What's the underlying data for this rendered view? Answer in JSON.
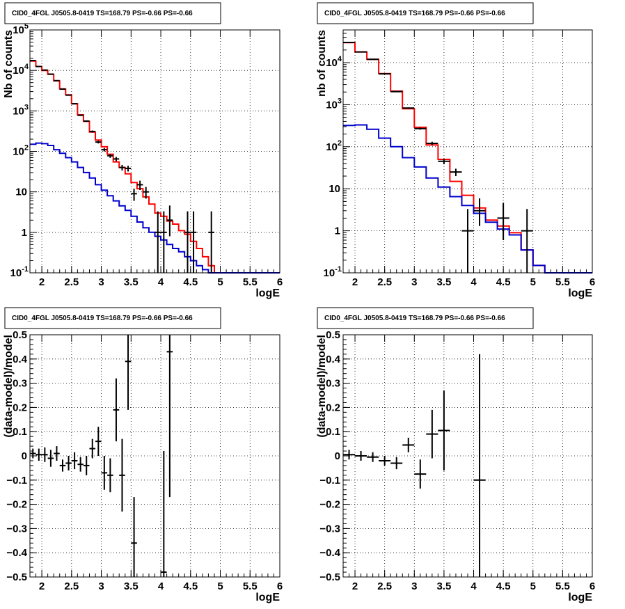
{
  "chart_data": [
    {
      "type": "histogram",
      "title": "CID0_4FGL J0505.8-0419 TS=168.79 PS=-0.66 PS=-0.66",
      "xlabel": "logE",
      "ylabel": "Nb of counts",
      "xlim": [
        1.8,
        6.0
      ],
      "ylim": [
        0.1,
        100000
      ],
      "yscale": "log",
      "grid": true,
      "x_ticks": [
        "2",
        "2.5",
        "3",
        "3.5",
        "4",
        "4.5",
        "5",
        "5.5",
        "6"
      ],
      "y_ticks": [
        "10^-1",
        "1",
        "10",
        "10^2",
        "10^3",
        "10^4",
        "10^5"
      ],
      "colors": {
        "total_model": "#ff0000",
        "background_model": "#0000cc",
        "data": "#000000"
      },
      "bin_width": 0.1,
      "series": [
        {
          "role": "total-model",
          "color": "#ff0000",
          "x": [
            1.85,
            1.95,
            2.05,
            2.15,
            2.25,
            2.35,
            2.45,
            2.55,
            2.65,
            2.75,
            2.85,
            2.95,
            3.05,
            3.15,
            3.25,
            3.35,
            3.45,
            3.55,
            3.65,
            3.75,
            3.85,
            3.95,
            4.05,
            4.15,
            4.25,
            4.35,
            4.45,
            4.55,
            4.65,
            4.75,
            4.85,
            4.95,
            5.05,
            5.15,
            5.25,
            5.35,
            5.45,
            5.55,
            5.65,
            5.75,
            5.85,
            5.95
          ],
          "values": [
            17000,
            12500,
            10000,
            8000,
            5500,
            3500,
            2500,
            1500,
            800,
            550,
            300,
            190,
            130,
            85,
            55,
            40,
            28,
            17,
            12,
            7.5,
            5,
            3,
            2.5,
            1.9,
            1.6,
            1.1,
            0.9,
            0.6,
            0.4,
            0.25,
            0.15,
            0.1,
            0.1,
            0.1,
            0.1,
            0.1,
            0.1,
            0.1,
            0.1,
            0.1,
            0.1,
            0.1
          ]
        },
        {
          "role": "background-model",
          "color": "#0000cc",
          "x": [
            1.85,
            1.95,
            2.05,
            2.15,
            2.25,
            2.35,
            2.45,
            2.55,
            2.65,
            2.75,
            2.85,
            2.95,
            3.05,
            3.15,
            3.25,
            3.35,
            3.45,
            3.55,
            3.65,
            3.75,
            3.85,
            3.95,
            4.05,
            4.15,
            4.25,
            4.35,
            4.45,
            4.55,
            4.65,
            4.75,
            4.85,
            4.95,
            5.05,
            5.15,
            5.25,
            5.35,
            5.45,
            5.55,
            5.65,
            5.75,
            5.85,
            5.95
          ],
          "values": [
            150,
            160,
            155,
            140,
            110,
            90,
            70,
            55,
            40,
            30,
            22,
            15,
            11,
            8,
            6,
            4.5,
            3.5,
            2.5,
            1.8,
            1.3,
            1.0,
            0.8,
            0.65,
            0.5,
            0.4,
            0.33,
            0.25,
            0.2,
            0.15,
            0.12,
            0.1,
            0.1,
            0.1,
            0.1,
            0.1,
            0.1,
            0.1,
            0.1,
            0.1,
            0.1,
            0.1,
            0.1
          ]
        },
        {
          "role": "data",
          "color": "#000000",
          "x": [
            1.85,
            1.95,
            2.05,
            2.15,
            2.25,
            2.35,
            2.45,
            2.55,
            2.65,
            2.75,
            2.85,
            2.95,
            3.05,
            3.15,
            3.25,
            3.35,
            3.45,
            3.55,
            3.65,
            3.75,
            3.95,
            4.05,
            4.15,
            4.45,
            4.55,
            4.85
          ],
          "values": [
            17500,
            12500,
            10200,
            8100,
            5600,
            3450,
            2450,
            1500,
            780,
            560,
            310,
            170,
            110,
            78,
            65,
            40,
            38,
            9,
            15,
            10,
            1,
            1,
            2,
            1,
            1,
            1
          ],
          "err_low": [
            130,
            110,
            100,
            90,
            75,
            59,
            50,
            39,
            28,
            24,
            18,
            13,
            10.5,
            8.8,
            8,
            6.3,
            6.2,
            3,
            3.9,
            3.2,
            0.9,
            0.9,
            1.2,
            0.9,
            0.9,
            0.9
          ],
          "err_high": [
            130,
            110,
            100,
            90,
            75,
            59,
            50,
            39,
            28,
            24,
            18,
            13,
            10.5,
            8.8,
            8,
            6.3,
            6.2,
            3,
            3.9,
            3.2,
            2.3,
            2.3,
            2.6,
            2.3,
            2.3,
            2.3
          ]
        }
      ]
    },
    {
      "type": "histogram",
      "title": "CID0_4FGL J0505.8-0419 TS=168.79 PS=-0.66 PS=-0.66",
      "xlabel": "logE",
      "ylabel": "nb of counts",
      "xlim": [
        1.8,
        6.0
      ],
      "ylim": [
        0.1,
        60000
      ],
      "yscale": "log",
      "grid": true,
      "x_ticks": [
        "2",
        "2.5",
        "3",
        "3.5",
        "4",
        "4.5",
        "5",
        "5.5",
        "6"
      ],
      "y_ticks": [
        "10^-1",
        "1",
        "10",
        "10^2",
        "10^3",
        "10^4"
      ],
      "bin_width": 0.2,
      "series": [
        {
          "role": "total-model",
          "color": "#ff0000",
          "x": [
            1.9,
            2.1,
            2.3,
            2.5,
            2.7,
            2.9,
            3.1,
            3.3,
            3.5,
            3.7,
            3.9,
            4.1,
            4.3,
            4.5,
            4.7,
            4.9,
            5.1,
            5.3,
            5.5,
            5.7,
            5.9
          ],
          "values": [
            30000,
            18000,
            12000,
            5500,
            2100,
            800,
            290,
            110,
            50,
            15,
            7,
            3.5,
            1.8,
            1.3,
            0.9,
            0.35,
            0.15,
            0.1,
            0.1,
            0.1,
            0.1
          ]
        },
        {
          "role": "background-model",
          "color": "#0000cc",
          "x": [
            1.9,
            2.1,
            2.3,
            2.5,
            2.7,
            2.9,
            3.1,
            3.3,
            3.5,
            3.7,
            3.9,
            4.1,
            4.3,
            4.5,
            4.7,
            4.9,
            5.1,
            5.3,
            5.5,
            5.7,
            5.9
          ],
          "values": [
            320,
            330,
            260,
            160,
            100,
            55,
            33,
            18,
            11,
            6.5,
            4,
            2.6,
            1.6,
            1.1,
            0.8,
            0.35,
            0.15,
            0.1,
            0.1,
            0.1,
            0.1
          ]
        },
        {
          "role": "data",
          "color": "#000000",
          "x": [
            1.9,
            2.1,
            2.3,
            2.5,
            2.7,
            2.9,
            3.1,
            3.3,
            3.5,
            3.7,
            3.9,
            4.1,
            4.5,
            4.9
          ],
          "values": [
            30200,
            18000,
            12000,
            5400,
            2050,
            830,
            270,
            120,
            45,
            25,
            1,
            3,
            2,
            1
          ],
          "err_low": [
            174,
            134,
            110,
            73,
            45,
            29,
            16,
            11,
            6.7,
            5,
            0.9,
            1.7,
            1.4,
            0.9
          ],
          "err_high": [
            174,
            134,
            110,
            73,
            45,
            29,
            16,
            11,
            6.7,
            5,
            2.3,
            2.9,
            2.6,
            2.3
          ]
        }
      ]
    },
    {
      "type": "scatter",
      "title": "CID0_4FGL J0505.8-0419 TS=168.79 PS=-0.66 PS=-0.66",
      "xlabel": "logE",
      "ylabel": "(data-model)/model",
      "xlim": [
        1.8,
        6.0
      ],
      "ylim": [
        -0.5,
        0.5
      ],
      "grid": true,
      "x_ticks": [
        "2",
        "2.5",
        "3",
        "3.5",
        "4",
        "4.5",
        "5",
        "5.5",
        "6"
      ],
      "y_ticks": [
        "-0.5",
        "-0.4",
        "-0.3",
        "-0.2",
        "-0.1",
        "0",
        "0.1",
        "0.2",
        "0.3",
        "0.4",
        "0.5"
      ],
      "bin_width": 0.1,
      "series": [
        {
          "role": "residuals",
          "color": "#000000",
          "x": [
            1.85,
            1.95,
            2.05,
            2.15,
            2.25,
            2.35,
            2.45,
            2.55,
            2.65,
            2.75,
            2.85,
            2.95,
            3.05,
            3.15,
            3.25,
            3.35,
            3.45,
            3.55,
            4.05,
            4.15
          ],
          "values": [
            0.01,
            0.005,
            0.005,
            -0.01,
            0.01,
            -0.04,
            -0.03,
            -0.02,
            -0.035,
            -0.04,
            0.03,
            0.06,
            -0.07,
            -0.08,
            0.19,
            -0.08,
            0.39,
            -0.36,
            -0.48,
            0.43
          ],
          "err": [
            0.02,
            0.025,
            0.03,
            0.035,
            0.03,
            0.025,
            0.03,
            0.035,
            0.03,
            0.04,
            0.04,
            0.06,
            0.07,
            0.07,
            0.13,
            0.15,
            0.2,
            0.19,
            0.5,
            0.6
          ]
        }
      ]
    },
    {
      "type": "scatter",
      "title": "CID0_4FGL J0505.8-0419 TS=168.79 PS=-0.66 PS=-0.66",
      "xlabel": "logE",
      "ylabel": "(data-model)/model",
      "xlim": [
        1.8,
        6.0
      ],
      "ylim": [
        -0.5,
        0.5
      ],
      "grid": true,
      "x_ticks": [
        "2",
        "2.5",
        "3",
        "3.5",
        "4",
        "4.5",
        "5",
        "5.5",
        "6"
      ],
      "y_ticks": [
        "-0.5",
        "-0.4",
        "-0.3",
        "-0.2",
        "-0.1",
        "0",
        "0.1",
        "0.2",
        "0.3",
        "0.4",
        "0.5"
      ],
      "bin_width": 0.2,
      "series": [
        {
          "role": "residuals",
          "color": "#000000",
          "x": [
            1.9,
            2.1,
            2.3,
            2.5,
            2.7,
            2.9,
            3.1,
            3.3,
            3.5,
            4.1
          ],
          "values": [
            0.005,
            0.0,
            -0.005,
            -0.02,
            -0.03,
            0.045,
            -0.075,
            0.09,
            0.105,
            -0.1
          ],
          "err": [
            0.02,
            0.02,
            0.02,
            0.02,
            0.025,
            0.03,
            0.06,
            0.1,
            0.165,
            0.52
          ]
        }
      ]
    }
  ]
}
